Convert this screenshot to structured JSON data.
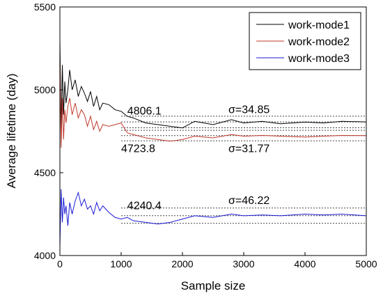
{
  "chart_data": {
    "type": "line",
    "xlabel": "Sample size",
    "ylabel": "Average lifetime (day)",
    "xlim": [
      0,
      5000
    ],
    "ylim": [
      4000,
      5500
    ],
    "xticks": [
      0,
      1000,
      2000,
      3000,
      4000,
      5000
    ],
    "yticks": [
      4000,
      4500,
      5000,
      5500
    ],
    "grid": false,
    "legend_position": "top-right",
    "series": [
      {
        "name": "work-mode1",
        "color": "#000000",
        "x": [
          0,
          20,
          40,
          60,
          80,
          100,
          130,
          160,
          200,
          250,
          300,
          350,
          400,
          450,
          500,
          550,
          600,
          650,
          700,
          800,
          900,
          1000,
          1100,
          1200,
          1400,
          1600,
          1800,
          2000,
          2200,
          2500,
          2800,
          3000,
          3300,
          3600,
          4000,
          4300,
          4600,
          5000
        ],
        "y": [
          5300,
          4750,
          5150,
          4850,
          5050,
          4920,
          5000,
          5120,
          5000,
          5060,
          4960,
          5020,
          4980,
          4930,
          4990,
          4900,
          4960,
          4880,
          4920,
          4910,
          4880,
          4870,
          4840,
          4830,
          4800,
          4790,
          4780,
          4770,
          4810,
          4790,
          4820,
          4800,
          4810,
          4795,
          4805,
          4800,
          4810,
          4806
        ]
      },
      {
        "name": "work-mode2",
        "color": "#c0392b",
        "x": [
          0,
          20,
          40,
          60,
          80,
          100,
          130,
          160,
          200,
          250,
          300,
          350,
          400,
          450,
          500,
          550,
          600,
          650,
          700,
          800,
          900,
          1000,
          1100,
          1200,
          1400,
          1600,
          1800,
          2000,
          2200,
          2500,
          2800,
          3000,
          3300,
          3600,
          4000,
          4300,
          4600,
          5000
        ],
        "y": [
          5200,
          4650,
          4950,
          4700,
          4880,
          4800,
          4900,
          4950,
          4850,
          4920,
          4830,
          4880,
          4850,
          4780,
          4840,
          4760,
          4810,
          4750,
          4790,
          4780,
          4790,
          4800,
          4740,
          4730,
          4710,
          4700,
          4690,
          4700,
          4720,
          4710,
          4730,
          4720,
          4725,
          4720,
          4715,
          4720,
          4725,
          4724
        ]
      },
      {
        "name": "work-mode3",
        "color": "#1a1ad6",
        "x": [
          0,
          20,
          40,
          60,
          80,
          100,
          130,
          160,
          200,
          250,
          300,
          350,
          400,
          450,
          500,
          550,
          600,
          650,
          700,
          800,
          900,
          1000,
          1100,
          1200,
          1400,
          1600,
          1800,
          2000,
          2200,
          2500,
          2800,
          3000,
          3300,
          3600,
          4000,
          4300,
          4600,
          5000
        ],
        "y": [
          4050,
          4400,
          4200,
          4350,
          4250,
          4300,
          4180,
          4320,
          4250,
          4330,
          4380,
          4300,
          4340,
          4280,
          4300,
          4250,
          4320,
          4270,
          4300,
          4260,
          4230,
          4220,
          4230,
          4210,
          4200,
          4190,
          4200,
          4220,
          4240,
          4230,
          4250,
          4240,
          4245,
          4240,
          4250,
          4245,
          4250,
          4240
        ]
      }
    ],
    "annotations": [
      {
        "text": "4806.1",
        "x": 1100,
        "y": 4850
      },
      {
        "text": "σ=34.85",
        "x": 2750,
        "y": 4860
      },
      {
        "text": "4723.8",
        "x": 1000,
        "y": 4625
      },
      {
        "text": "σ=31.77",
        "x": 2750,
        "y": 4625
      },
      {
        "text": "4240.4",
        "x": 1100,
        "y": 4280
      },
      {
        "text": "σ=46.22",
        "x": 2750,
        "y": 4310
      }
    ],
    "reference_lines": [
      {
        "series": "work-mode1",
        "values": [
          4771.25,
          4806.1,
          4840.95
        ]
      },
      {
        "series": "work-mode2",
        "values": [
          4692.03,
          4723.8,
          4755.57
        ]
      },
      {
        "series": "work-mode3",
        "values": [
          4194.18,
          4240.4,
          4286.62
        ]
      }
    ]
  }
}
